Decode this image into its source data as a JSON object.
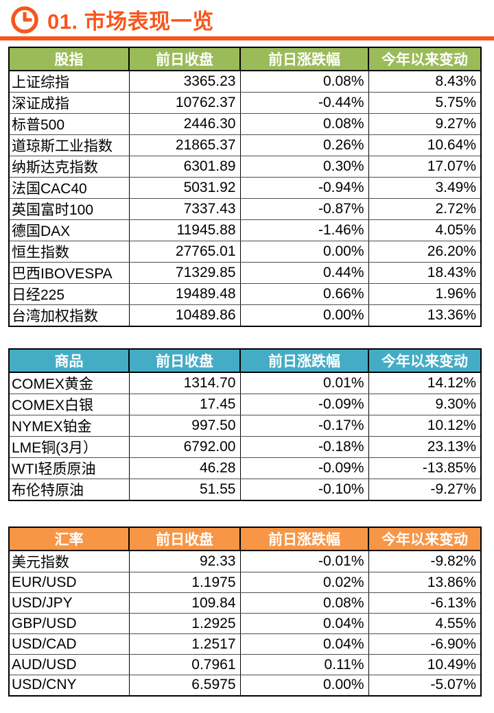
{
  "page": {
    "title": "01. 市场表现一览",
    "accent_color": "#f8551c",
    "clock_icon": "clock-icon"
  },
  "tables": [
    {
      "name": "stock-indices",
      "header_color": "#9bbb59",
      "columns": [
        "股指",
        "前日收盘",
        "前日涨跌幅",
        "今年以来变动"
      ],
      "rows": [
        [
          "上证综指",
          "3365.23",
          "0.08%",
          "8.43%"
        ],
        [
          "深证成指",
          "10762.37",
          "-0.44%",
          "5.75%"
        ],
        [
          "标普500",
          "2446.30",
          "0.08%",
          "9.27%"
        ],
        [
          "道琼斯工业指数",
          "21865.37",
          "0.26%",
          "10.64%"
        ],
        [
          "纳斯达克指数",
          "6301.89",
          "0.30%",
          "17.07%"
        ],
        [
          "法国CAC40",
          "5031.92",
          "-0.94%",
          "3.49%"
        ],
        [
          "英国富时100",
          "7337.43",
          "-0.87%",
          "2.72%"
        ],
        [
          "德国DAX",
          "11945.88",
          "-1.46%",
          "4.05%"
        ],
        [
          "恒生指数",
          "27765.01",
          "0.00%",
          "26.20%"
        ],
        [
          "巴西IBOVESPA",
          "71329.85",
          "0.44%",
          "18.43%"
        ],
        [
          "日经225",
          "19489.48",
          "0.66%",
          "1.96%"
        ],
        [
          "台湾加权指数",
          "10489.86",
          "0.00%",
          "13.36%"
        ]
      ]
    },
    {
      "name": "commodities",
      "header_color": "#45acc5",
      "columns": [
        "商品",
        "前日收盘",
        "前日涨跌幅",
        "今年以来变动"
      ],
      "rows": [
        [
          "COMEX黄金",
          "1314.70",
          "0.01%",
          "14.12%"
        ],
        [
          "COMEX白银",
          "17.45",
          "-0.09%",
          "9.30%"
        ],
        [
          "NYMEX铂金",
          "997.50",
          "-0.17%",
          "10.12%"
        ],
        [
          "LME铜(3月）",
          "6792.00",
          "-0.18%",
          "23.13%"
        ],
        [
          "WTI轻质原油",
          "46.28",
          "-0.09%",
          "-13.85%"
        ],
        [
          "布伦特原油",
          "51.55",
          "-0.10%",
          "-9.27%"
        ]
      ]
    },
    {
      "name": "exchange-rates",
      "header_color": "#f79646",
      "columns": [
        "汇率",
        "前日收盘",
        "前日涨跌幅",
        "今年以来变动"
      ],
      "rows": [
        [
          "美元指数",
          "92.33",
          "-0.01%",
          "-9.82%"
        ],
        [
          "EUR/USD",
          "1.1975",
          "0.02%",
          "13.86%"
        ],
        [
          "USD/JPY",
          "109.84",
          "0.08%",
          "-6.13%"
        ],
        [
          "GBP/USD",
          "1.2925",
          "0.04%",
          "4.55%"
        ],
        [
          "USD/CAD",
          "1.2517",
          "0.04%",
          "-6.90%"
        ],
        [
          "AUD/USD",
          "0.7961",
          "0.11%",
          "10.49%"
        ],
        [
          "USD/CNY",
          "6.5975",
          "0.00%",
          "-5.07%"
        ]
      ]
    }
  ]
}
